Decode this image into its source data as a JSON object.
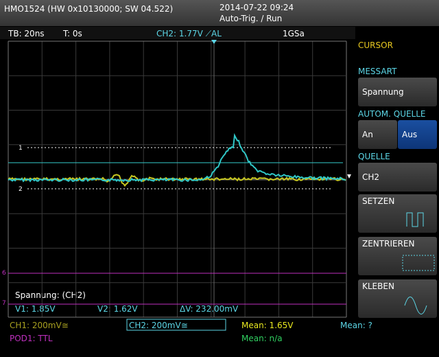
{
  "header": {
    "device": "HMO1524 (HW 0x10130000; SW 04.522)",
    "datetime": "2014-07-22 09:24",
    "status": "Auto-Trig. / Run"
  },
  "status_bar": {
    "timebase": "TB: 20ns",
    "trigger_time": "T: 0s",
    "trigger": "CH2: 1.77V ⟋AL",
    "sample_rate": "1GSa"
  },
  "screen": {
    "cursor_markers": [
      "1",
      "2"
    ],
    "channel_markers": [
      "6",
      "7"
    ],
    "info": "Spannung: (CH2)",
    "v1": "V1: 1.85V",
    "v2": "V2: 1.62V",
    "dv": "ΔV: 232.00mV"
  },
  "menu": {
    "title": "CURSOR",
    "items": [
      {
        "label": "MESSART",
        "value": "Spannung"
      },
      {
        "label": "AUTOM. QUELLE",
        "options": [
          "An",
          "Aus"
        ]
      },
      {
        "label": "QUELLE",
        "value": "CH2"
      },
      {
        "label": "SETZEN"
      },
      {
        "label": "ZENTRIEREN"
      },
      {
        "label": "KLEBEN"
      }
    ]
  },
  "footer": {
    "ch1": "CH1: 200mV≅",
    "ch2": "CH2: 200mV≅",
    "pod1": "POD1: TTL",
    "mean_ch1": "Mean: 1.65V",
    "mean_pod": "Mean: n/a",
    "mean_ch2": "Mean: ?"
  }
}
